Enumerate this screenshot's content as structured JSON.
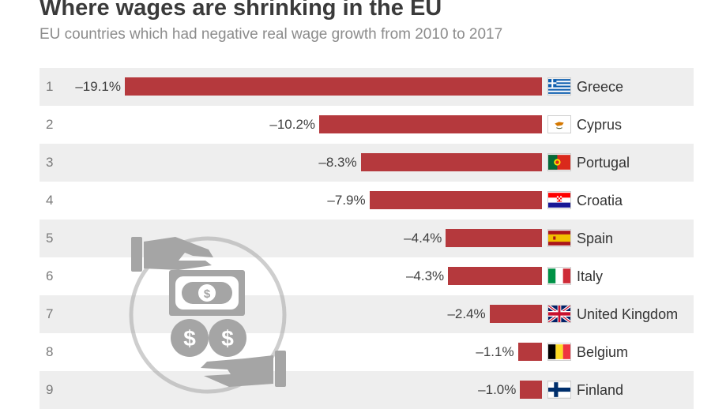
{
  "title": "Where wages are shrinking in the EU",
  "subtitle": "EU countries which had negative real wage growth from 2010 to 2017",
  "colors": {
    "bar": "#b5393d",
    "row_shade": "#eeeeee",
    "icon": "#a5a5a5"
  },
  "chart_data": {
    "type": "bar",
    "orientation": "horizontal",
    "title": "Where wages are shrinking in the EU",
    "subtitle": "EU countries which had negative real wage growth from 2010 to 2017",
    "unit": "%",
    "ranks": [
      "1",
      "2",
      "3",
      "4",
      "5",
      "6",
      "7",
      "8",
      "9"
    ],
    "categories": [
      "Greece",
      "Cyprus",
      "Portugal",
      "Croatia",
      "Spain",
      "Italy",
      "United Kingdom",
      "Belgium",
      "Finland"
    ],
    "values": [
      -19.1,
      -10.2,
      -8.3,
      -7.9,
      -4.4,
      -4.3,
      -2.4,
      -1.1,
      -1.0
    ],
    "labels": [
      "–19.1%",
      "–10.2%",
      "–8.3%",
      "–7.9%",
      "–4.4%",
      "–4.3%",
      "–2.4%",
      "–1.1%",
      "–1.0%"
    ],
    "flags": [
      "greece-flag-icon",
      "cyprus-flag-icon",
      "portugal-flag-icon",
      "croatia-flag-icon",
      "spain-flag-icon",
      "italy-flag-icon",
      "united-kingdom-flag-icon",
      "belgium-flag-icon",
      "finland-flag-icon"
    ],
    "xlim": [
      -19.1,
      0
    ]
  },
  "decoration": {
    "icon": "hands-money-icon"
  }
}
